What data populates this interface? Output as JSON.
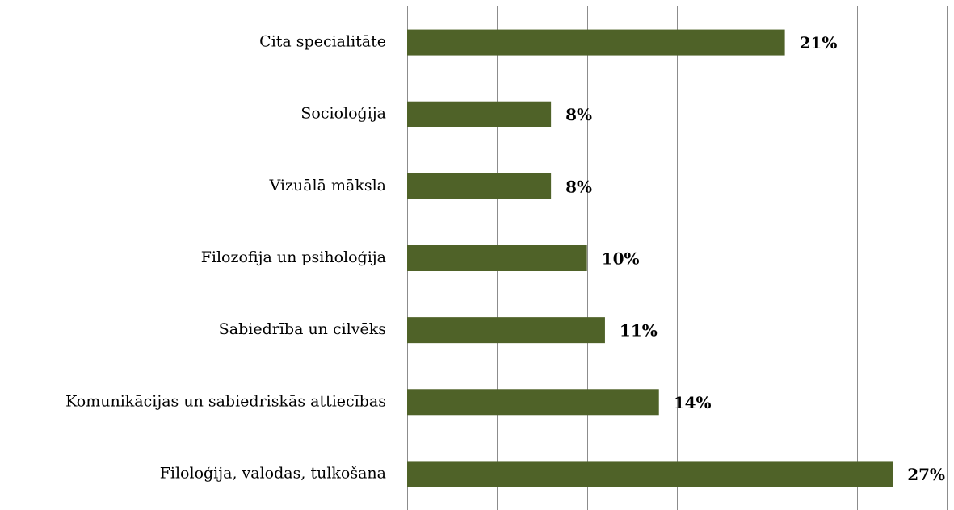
{
  "chart_data": {
    "type": "barh",
    "categories": [
      "Cita specialitāte",
      "Socioloģija",
      "Vizuālā māksla",
      "Filozofija un psiholoģija",
      "Sabiedrība un cilvēks",
      "Komunikācijas un sabiedriskās attiecības",
      "Filoloģija, valodas, tulkošana"
    ],
    "values": [
      21,
      8,
      8,
      10,
      11,
      14,
      27
    ],
    "value_labels": [
      "21%",
      "8%",
      "8%",
      "10%",
      "11%",
      "14%",
      "27%"
    ],
    "color": "#4f6228",
    "xlim": [
      0,
      30
    ],
    "xticks": [
      0,
      5,
      10,
      15,
      20,
      25,
      30
    ],
    "grid": true
  }
}
